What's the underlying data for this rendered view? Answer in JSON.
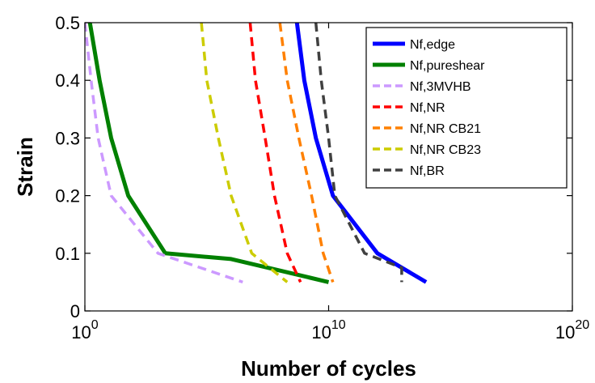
{
  "chart_data": {
    "type": "line",
    "title": "",
    "xlabel": "Number of cycles",
    "ylabel": "Strain",
    "xscale": "log",
    "xlim": [
      1,
      1e+20
    ],
    "ylim": [
      0,
      0.5
    ],
    "xticks": [
      1,
      10000000000.0,
      1e+20
    ],
    "xtick_labels": [
      {
        "base": "10",
        "exp": "0"
      },
      {
        "base": "10",
        "exp": "10"
      },
      {
        "base": "10",
        "exp": "20"
      }
    ],
    "yticks": [
      0,
      0.1,
      0.2,
      0.3,
      0.4,
      0.5
    ],
    "ytick_labels": [
      "0",
      "0.1",
      "0.2",
      "0.3",
      "0.4",
      "0.5"
    ],
    "grid": false,
    "legend_position": "top-right",
    "series": [
      {
        "name": "Nf,edge",
        "color": "#0000ff",
        "style": "solid",
        "x": [
          500000000.0,
          1000000000.0,
          3000000000.0,
          15000000000.0,
          1000000000000.0,
          100000000000000.0
        ],
        "y": [
          0.5,
          0.4,
          0.3,
          0.2,
          0.1,
          0.05
        ]
      },
      {
        "name": "Nf,pureshear",
        "color": "#008000",
        "style": "solid",
        "x": [
          1.6,
          4,
          12,
          60,
          2000,
          1000000.0,
          10000000000.0
        ],
        "y": [
          0.5,
          0.4,
          0.3,
          0.2,
          0.1,
          0.09,
          0.05
        ]
      },
      {
        "name": "Nf,3MVHB",
        "color": "#cc99ff",
        "style": "dashed",
        "x": [
          1,
          1.8,
          3.5,
          12,
          1000,
          3000000.0
        ],
        "y": [
          0.5,
          0.4,
          0.3,
          0.2,
          0.1,
          0.05
        ]
      },
      {
        "name": "Nf,NR",
        "color": "#ff0000",
        "style": "dashed",
        "x": [
          6000000.0,
          10000000.0,
          25000000.0,
          60000000.0,
          200000000.0,
          700000000.0
        ],
        "y": [
          0.5,
          0.4,
          0.3,
          0.2,
          0.1,
          0.05
        ]
      },
      {
        "name": "Nf,NR CB21",
        "color": "#ff8000",
        "style": "dashed",
        "x": [
          100000000.0,
          200000000.0,
          600000000.0,
          2000000000.0,
          6000000000.0,
          15000000000.0
        ],
        "y": [
          0.5,
          0.4,
          0.3,
          0.2,
          0.1,
          0.05
        ]
      },
      {
        "name": "Nf,NR CB23",
        "color": "#cccc00",
        "style": "dashed",
        "x": [
          60000.0,
          100000.0,
          300000.0,
          1000000.0,
          7000000.0,
          200000000.0
        ],
        "y": [
          0.5,
          0.4,
          0.3,
          0.2,
          0.1,
          0.05
        ]
      },
      {
        "name": "Nf,BR",
        "color": "#404040",
        "style": "dashed",
        "x": [
          3000000000.0,
          5000000000.0,
          10000000000.0,
          18000000000.0,
          300000000000.0,
          10000000000000.0,
          10000000000000.0
        ],
        "y": [
          0.5,
          0.4,
          0.3,
          0.2,
          0.1,
          0.075,
          0.05
        ]
      }
    ]
  }
}
